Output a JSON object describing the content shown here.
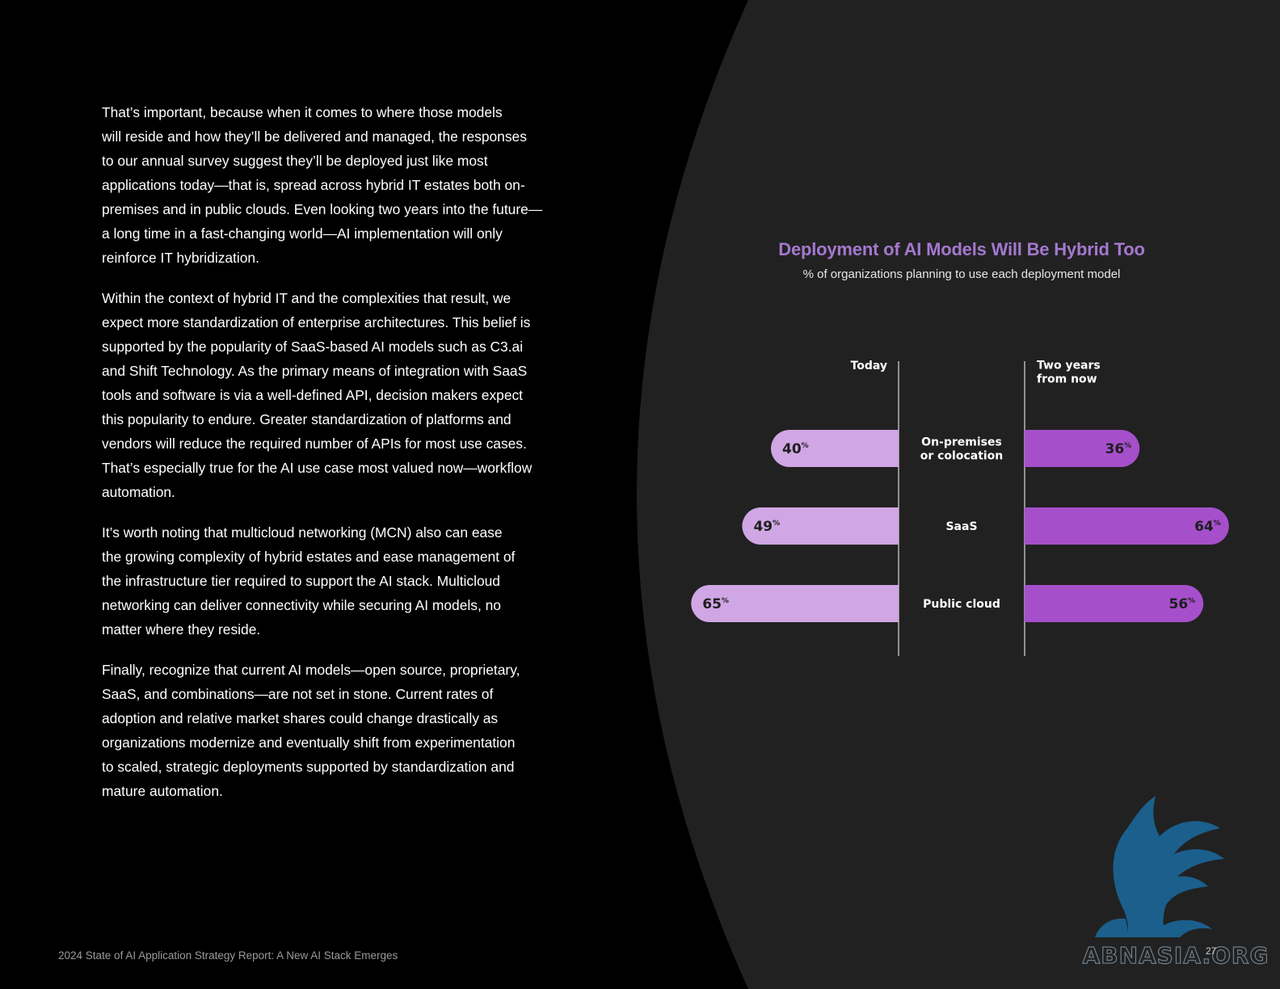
{
  "body_paragraphs": [
    "That’s important, because when it comes to where those models\nwill reside and how they’ll be delivered and managed, the responses\nto our annual survey suggest they’ll be deployed just like most\napplications today—that is, spread across hybrid IT estates both on-\npremises and in public clouds. Even looking two years into the future—\na long time in a fast-changing world—AI implementation will only\nreinforce IT hybridization.",
    "Within the context of hybrid IT and the complexities that result, we\nexpect more standardization of enterprise architectures. This belief is\nsupported by the popularity of SaaS-based AI models such as C3.ai\nand Shift Technology. As the primary means of integration with SaaS\ntools and software is via a well-defined API, decision makers expect\nthis popularity to endure. Greater standardization of platforms and\nvendors will reduce the required number of APIs for most use cases.\nThat’s especially true for the AI use case most valued now—workflow\nautomation.",
    "It’s worth noting that multicloud networking (MCN) also can ease\nthe growing complexity of hybrid estates and ease management of\nthe infrastructure tier required to support the AI stack. Multicloud\nnetworking can deliver connectivity while securing AI models, no\nmatter where they reside.",
    "Finally, recognize that current AI models—open source, proprietary,\nSaaS, and combinations—are not set in stone. Current rates of\nadoption and relative market shares could change drastically as\norganizations modernize and eventually shift from experimentation\nto scaled, strategic deployments supported by standardization and\nmature automation."
  ],
  "footer": "2024 State of AI Application Strategy Report: A New AI Stack Emerges",
  "page_number": "27",
  "watermark_text": "ABNASIA.ORG",
  "colors": {
    "page_bg": "#000000",
    "panel_bg": "#212121",
    "today_bar": "#d0a6e4",
    "future_bar": "#a64fcb",
    "title": "#a478cf",
    "watermark": "#1b5f8c"
  },
  "chart_data": {
    "type": "bar",
    "orientation": "horizontal-diverging",
    "title": "Deployment of AI Models Will Be Hybrid Too",
    "subtitle": "% of organizations planning to use each deployment model",
    "categories": [
      "On-premises\nor colocation",
      "SaaS",
      "Public cloud"
    ],
    "series": [
      {
        "name": "Today",
        "values": [
          40,
          49,
          65
        ],
        "labels": [
          "40",
          "49",
          "65"
        ]
      },
      {
        "name": "Two years\nfrom now",
        "values": [
          36,
          64,
          56
        ],
        "labels": [
          "36",
          "64",
          "56"
        ]
      }
    ],
    "unit": "%",
    "xlim": [
      0,
      100
    ]
  }
}
